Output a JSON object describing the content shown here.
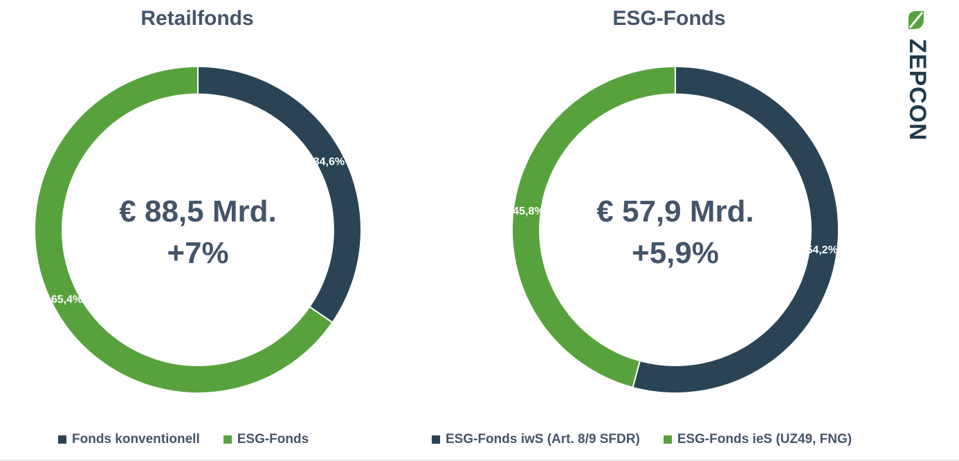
{
  "colors": {
    "navy": "#2a4456",
    "green": "#58a23d",
    "center_text": "#44546a",
    "label_text": "#ffffff"
  },
  "brand": {
    "name": "ZEPCON",
    "icon": "leaf-icon"
  },
  "chart_data": [
    {
      "type": "pie",
      "variant": "donut",
      "title": "Retailfonds",
      "center_value": "€ 88,5 Mrd.",
      "center_change": "+7%",
      "slices": [
        {
          "name": "Fonds konventionell",
          "value": 34.6,
          "label": "34,6%",
          "color": "#2a4456"
        },
        {
          "name": "ESG-Fonds",
          "value": 65.4,
          "label": "65,4%",
          "color": "#58a23d"
        }
      ],
      "legend": [
        {
          "label": "Fonds konventionell",
          "color": "#2a4456"
        },
        {
          "label": "ESG-Fonds",
          "color": "#58a23d"
        }
      ],
      "legend_position": "bottom"
    },
    {
      "type": "pie",
      "variant": "donut",
      "title": "ESG-Fonds",
      "center_value": "€ 57,9 Mrd.",
      "center_change": "+5,9%",
      "slices": [
        {
          "name": "ESG-Fonds iwS (Art. 8/9 SFDR)",
          "value": 54.2,
          "label": "54,2%",
          "color": "#2a4456"
        },
        {
          "name": "ESG-Fonds ieS (UZ49, FNG)",
          "value": 45.8,
          "label": "45,8%",
          "color": "#58a23d"
        }
      ],
      "legend": [
        {
          "label": "ESG-Fonds iwS (Art. 8/9 SFDR)",
          "color": "#2a4456"
        },
        {
          "label": "ESG-Fonds ieS (UZ49, FNG)",
          "color": "#58a23d"
        }
      ],
      "legend_position": "bottom"
    }
  ]
}
